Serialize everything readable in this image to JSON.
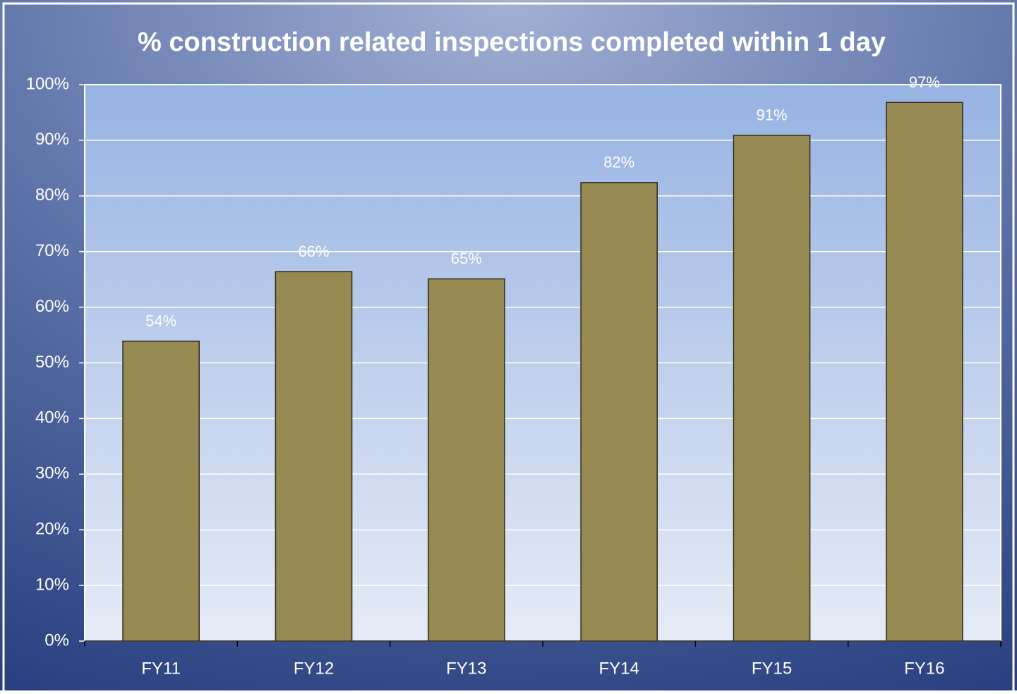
{
  "chart_data": {
    "type": "bar",
    "title": "% construction related inspections completed within 1 day",
    "categories": [
      "FY11",
      "FY12",
      "FY13",
      "FY14",
      "FY15",
      "FY16"
    ],
    "values": [
      53.9,
      66.4,
      65.1,
      82.4,
      90.9,
      96.8
    ],
    "value_labels": [
      "54%",
      "66%",
      "65%",
      "82%",
      "91%",
      "97%"
    ],
    "color": "#968a52",
    "ylim": [
      0,
      100
    ],
    "yticks": [
      {
        "value": 0,
        "label": "0%"
      },
      {
        "value": 10,
        "label": "10%"
      },
      {
        "value": 20,
        "label": "20%"
      },
      {
        "value": 30,
        "label": "30%"
      },
      {
        "value": 40,
        "label": "40%"
      },
      {
        "value": 50,
        "label": "50%"
      },
      {
        "value": 60,
        "label": "60%"
      },
      {
        "value": 70,
        "label": "70%"
      },
      {
        "value": 80,
        "label": "80%"
      },
      {
        "value": 90,
        "label": "90%"
      },
      {
        "value": 100,
        "label": "100%"
      }
    ],
    "grid": true
  }
}
